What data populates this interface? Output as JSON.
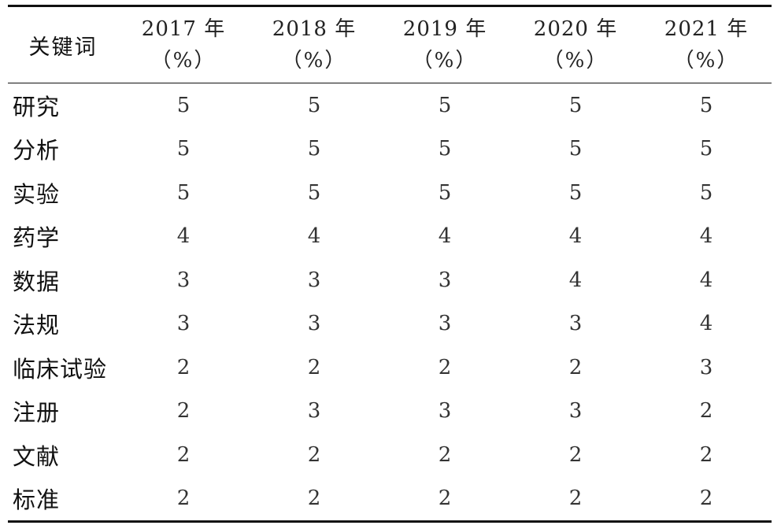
{
  "table": {
    "header": {
      "keyword_label": "关键词",
      "years": [
        {
          "year": "2017 年",
          "unit": "（%）"
        },
        {
          "year": "2018 年",
          "unit": "（%）"
        },
        {
          "year": "2019 年",
          "unit": "（%）"
        },
        {
          "year": "2020 年",
          "unit": "（%）"
        },
        {
          "year": "2021 年",
          "unit": "（%）"
        }
      ]
    },
    "rows": [
      {
        "keyword": "研究",
        "values": [
          "5",
          "5",
          "5",
          "5",
          "5"
        ]
      },
      {
        "keyword": "分析",
        "values": [
          "5",
          "5",
          "5",
          "5",
          "5"
        ]
      },
      {
        "keyword": "实验",
        "values": [
          "5",
          "5",
          "5",
          "5",
          "5"
        ]
      },
      {
        "keyword": "药学",
        "values": [
          "4",
          "4",
          "4",
          "4",
          "4"
        ]
      },
      {
        "keyword": "数据",
        "values": [
          "3",
          "3",
          "3",
          "4",
          "4"
        ]
      },
      {
        "keyword": "法规",
        "values": [
          "3",
          "3",
          "3",
          "3",
          "4"
        ]
      },
      {
        "keyword": "临床试验",
        "values": [
          "2",
          "2",
          "2",
          "2",
          "3"
        ]
      },
      {
        "keyword": "注册",
        "values": [
          "2",
          "3",
          "3",
          "3",
          "2"
        ]
      },
      {
        "keyword": "文献",
        "values": [
          "2",
          "2",
          "2",
          "2",
          "2"
        ]
      },
      {
        "keyword": "标准",
        "values": [
          "2",
          "2",
          "2",
          "2",
          "2"
        ]
      }
    ]
  }
}
